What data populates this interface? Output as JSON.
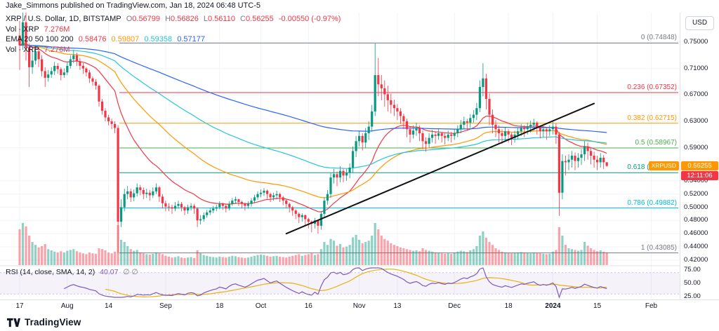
{
  "header": {
    "publish_text": "Jake_Simmons published on TradingView.com, Jan 18, 2024 06:48 UTC-5"
  },
  "legend": {
    "title": "XRP / U.S. Dollar, 1D, BITSTAMP",
    "ohlc": {
      "o_label": "O",
      "o": "0.56799",
      "h_label": "H",
      "h": "0.56826",
      "l_label": "L",
      "l": "0.56110",
      "c_label": "C",
      "c": "0.56255",
      "change": "-0.00550 (-0.97%)"
    },
    "vol": {
      "label": "Vol · XRP",
      "value": "7.276M"
    },
    "ema": {
      "label": "EMA 20 50 100 200",
      "values": [
        "0.58476",
        "0.59807",
        "0.59358",
        "0.57177"
      ]
    },
    "vol2": {
      "label": "Vol · XRP",
      "value": "7.276M"
    }
  },
  "rsi_legend": {
    "label": "RSI (14, close, SMA, 14, 2)",
    "value": "40.07",
    "marks": "∅ ∅"
  },
  "axis": {
    "currency": "USD",
    "price_ticks": [
      {
        "label": "0.75000",
        "value": 0.75
      },
      {
        "label": "0.71000",
        "value": 0.71
      },
      {
        "label": "0.67000",
        "value": 0.67
      },
      {
        "label": "0.63000",
        "value": 0.63
      },
      {
        "label": "0.59000",
        "value": 0.59
      },
      {
        "label": "0.54000",
        "value": 0.54
      },
      {
        "label": "0.52000",
        "value": 0.52
      },
      {
        "label": "0.50000",
        "value": 0.5
      },
      {
        "label": "0.48000",
        "value": 0.48
      },
      {
        "label": "0.46000",
        "value": 0.46
      },
      {
        "label": "0.44000",
        "value": 0.44
      },
      {
        "label": "0.42000",
        "value": 0.42
      }
    ],
    "rsi_ticks": [
      {
        "label": "75.00",
        "value": 75
      },
      {
        "label": "50.00",
        "value": 50
      },
      {
        "label": "25.00",
        "value": 25
      }
    ],
    "price_badge": {
      "symbol": "XRPUSD",
      "label": "0.56255",
      "value": 0.56255,
      "countdown": "12:11:06"
    }
  },
  "time_axis": [
    {
      "label": "17",
      "bar": 0
    },
    {
      "label": "Aug",
      "bar": 15
    },
    {
      "label": "14",
      "bar": 28
    },
    {
      "label": "Sep",
      "bar": 46
    },
    {
      "label": "18",
      "bar": 63
    },
    {
      "label": "Oct",
      "bar": 76
    },
    {
      "label": "16",
      "bar": 91
    },
    {
      "label": "Nov",
      "bar": 107
    },
    {
      "label": "13",
      "bar": 119
    },
    {
      "label": "Dec",
      "bar": 137
    },
    {
      "label": "18",
      "bar": 154
    },
    {
      "label": "2024",
      "bar": 168,
      "strong": true
    },
    {
      "label": "15",
      "bar": 182
    },
    {
      "label": "Feb",
      "bar": 199
    }
  ],
  "footer": {
    "brand": "TradingView"
  },
  "colors": {
    "text_primary": "#131722",
    "text_muted": "#787b86",
    "up": "#089981",
    "down": "#f23645",
    "grid": "#f0f3fa",
    "border": "#e0e3eb",
    "vol_up": "rgba(8,153,129,0.45)",
    "vol_down": "rgba(242,54,69,0.45)",
    "ema": [
      "#f23645",
      "#ff9800",
      "#26c6da",
      "#2962ff"
    ],
    "trendline": "#111111",
    "rsi": "#7e57c2",
    "rsi_ma": "#e8b20c",
    "rsi_band": "rgba(126,87,194,0.08)",
    "rsi_level": "#b39ddb",
    "badge_bg": "#ff9800",
    "countdown_bg": "#f23645"
  },
  "chart_data": {
    "type": "candlestick",
    "title": "XRP / U.S. Dollar, 1D, BITSTAMP",
    "symbol": "XRPUSD",
    "interval": "1D",
    "exchange": "BITSTAMP",
    "start_date": "2023-07-17",
    "bars": 186,
    "ylim": [
      0.414,
      0.78
    ],
    "open_rule": "open equals previous close",
    "first_open": 0.76,
    "hlc": [
      [
        0.782,
        0.708,
        0.745
      ],
      [
        0.82,
        0.738,
        0.78
      ],
      [
        0.814,
        0.722,
        0.742
      ],
      [
        0.748,
        0.682,
        0.712
      ],
      [
        0.738,
        0.702,
        0.722
      ],
      [
        0.745,
        0.716,
        0.736
      ],
      [
        0.742,
        0.712,
        0.724
      ],
      [
        0.73,
        0.698,
        0.706
      ],
      [
        0.712,
        0.682,
        0.696
      ],
      [
        0.708,
        0.69,
        0.701
      ],
      [
        0.712,
        0.696,
        0.706
      ],
      [
        0.72,
        0.7,
        0.714
      ],
      [
        0.718,
        0.702,
        0.709
      ],
      [
        0.712,
        0.692,
        0.7
      ],
      [
        0.71,
        0.696,
        0.704
      ],
      [
        0.72,
        0.7,
        0.714
      ],
      [
        0.73,
        0.71,
        0.724
      ],
      [
        0.738,
        0.718,
        0.73
      ],
      [
        0.734,
        0.714,
        0.721
      ],
      [
        0.726,
        0.708,
        0.714
      ],
      [
        0.718,
        0.702,
        0.71
      ],
      [
        0.712,
        0.698,
        0.704
      ],
      [
        0.708,
        0.688,
        0.695
      ],
      [
        0.698,
        0.684,
        0.69
      ],
      [
        0.694,
        0.678,
        0.684
      ],
      [
        0.686,
        0.652,
        0.66
      ],
      [
        0.664,
        0.64,
        0.646
      ],
      [
        0.65,
        0.63,
        0.636
      ],
      [
        0.64,
        0.624,
        0.63
      ],
      [
        0.634,
        0.618,
        0.626
      ],
      [
        0.63,
        0.612,
        0.62
      ],
      [
        0.624,
        0.43,
        0.478
      ],
      [
        0.512,
        0.47,
        0.5
      ],
      [
        0.528,
        0.494,
        0.52
      ],
      [
        0.532,
        0.512,
        0.524
      ],
      [
        0.528,
        0.508,
        0.515
      ],
      [
        0.527,
        0.509,
        0.521
      ],
      [
        0.536,
        0.516,
        0.53
      ],
      [
        0.534,
        0.518,
        0.526
      ],
      [
        0.53,
        0.512,
        0.52
      ],
      [
        0.528,
        0.514,
        0.522
      ],
      [
        0.526,
        0.51,
        0.518
      ],
      [
        0.53,
        0.514,
        0.524
      ],
      [
        0.536,
        0.52,
        0.53
      ],
      [
        0.532,
        0.508,
        0.516
      ],
      [
        0.52,
        0.498,
        0.506
      ],
      [
        0.51,
        0.494,
        0.501
      ],
      [
        0.506,
        0.494,
        0.5
      ],
      [
        0.504,
        0.49,
        0.498
      ],
      [
        0.508,
        0.494,
        0.502
      ],
      [
        0.51,
        0.498,
        0.505
      ],
      [
        0.508,
        0.494,
        0.5
      ],
      [
        0.502,
        0.488,
        0.495
      ],
      [
        0.504,
        0.49,
        0.5
      ],
      [
        0.506,
        0.495,
        0.502
      ],
      [
        0.505,
        0.49,
        0.498
      ],
      [
        0.5,
        0.47,
        0.48
      ],
      [
        0.488,
        0.474,
        0.482
      ],
      [
        0.492,
        0.478,
        0.488
      ],
      [
        0.496,
        0.484,
        0.492
      ],
      [
        0.499,
        0.488,
        0.495
      ],
      [
        0.502,
        0.491,
        0.498
      ],
      [
        0.504,
        0.494,
        0.5
      ],
      [
        0.509,
        0.497,
        0.505
      ],
      [
        0.507,
        0.496,
        0.502
      ],
      [
        0.505,
        0.492,
        0.498
      ],
      [
        0.509,
        0.495,
        0.505
      ],
      [
        0.514,
        0.502,
        0.51
      ],
      [
        0.516,
        0.505,
        0.512
      ],
      [
        0.513,
        0.502,
        0.508
      ],
      [
        0.51,
        0.498,
        0.505
      ],
      [
        0.507,
        0.495,
        0.502
      ],
      [
        0.509,
        0.498,
        0.505
      ],
      [
        0.514,
        0.501,
        0.51
      ],
      [
        0.519,
        0.506,
        0.515
      ],
      [
        0.524,
        0.511,
        0.52
      ],
      [
        0.527,
        0.515,
        0.522
      ],
      [
        0.529,
        0.517,
        0.525
      ],
      [
        0.527,
        0.513,
        0.52
      ],
      [
        0.522,
        0.508,
        0.515
      ],
      [
        0.522,
        0.51,
        0.518
      ],
      [
        0.525,
        0.512,
        0.52
      ],
      [
        0.522,
        0.508,
        0.515
      ],
      [
        0.517,
        0.503,
        0.51
      ],
      [
        0.512,
        0.498,
        0.505
      ],
      [
        0.507,
        0.492,
        0.5
      ],
      [
        0.502,
        0.487,
        0.495
      ],
      [
        0.497,
        0.482,
        0.49
      ],
      [
        0.492,
        0.476,
        0.485
      ],
      [
        0.491,
        0.478,
        0.488
      ],
      [
        0.489,
        0.473,
        0.482
      ],
      [
        0.484,
        0.468,
        0.478
      ],
      [
        0.48,
        0.462,
        0.475
      ],
      [
        0.484,
        0.468,
        0.48
      ],
      [
        0.478,
        0.46,
        0.472
      ],
      [
        0.494,
        0.466,
        0.49
      ],
      [
        0.515,
        0.484,
        0.51
      ],
      [
        0.526,
        0.504,
        0.52
      ],
      [
        0.552,
        0.514,
        0.545
      ],
      [
        0.558,
        0.536,
        0.55
      ],
      [
        0.554,
        0.532,
        0.545
      ],
      [
        0.562,
        0.538,
        0.555
      ],
      [
        0.558,
        0.538,
        0.548
      ],
      [
        0.558,
        0.54,
        0.552
      ],
      [
        0.566,
        0.544,
        0.56
      ],
      [
        0.592,
        0.552,
        0.585
      ],
      [
        0.608,
        0.576,
        0.6
      ],
      [
        0.616,
        0.592,
        0.608
      ],
      [
        0.612,
        0.586,
        0.598
      ],
      [
        0.62,
        0.59,
        0.612
      ],
      [
        0.63,
        0.602,
        0.622
      ],
      [
        0.655,
        0.614,
        0.645
      ],
      [
        0.748,
        0.638,
        0.7
      ],
      [
        0.726,
        0.668,
        0.686
      ],
      [
        0.7,
        0.662,
        0.68
      ],
      [
        0.692,
        0.652,
        0.671
      ],
      [
        0.684,
        0.645,
        0.662
      ],
      [
        0.672,
        0.642,
        0.655
      ],
      [
        0.663,
        0.638,
        0.65
      ],
      [
        0.656,
        0.632,
        0.645
      ],
      [
        0.65,
        0.626,
        0.638
      ],
      [
        0.642,
        0.618,
        0.63
      ],
      [
        0.634,
        0.606,
        0.618
      ],
      [
        0.622,
        0.598,
        0.61
      ],
      [
        0.624,
        0.604,
        0.616
      ],
      [
        0.628,
        0.608,
        0.62
      ],
      [
        0.624,
        0.6,
        0.612
      ],
      [
        0.616,
        0.588,
        0.6
      ],
      [
        0.606,
        0.584,
        0.596
      ],
      [
        0.612,
        0.59,
        0.605
      ],
      [
        0.617,
        0.598,
        0.61
      ],
      [
        0.615,
        0.596,
        0.608
      ],
      [
        0.618,
        0.602,
        0.612
      ],
      [
        0.614,
        0.598,
        0.608
      ],
      [
        0.612,
        0.595,
        0.605
      ],
      [
        0.616,
        0.6,
        0.61
      ],
      [
        0.614,
        0.598,
        0.608
      ],
      [
        0.618,
        0.602,
        0.612
      ],
      [
        0.624,
        0.606,
        0.618
      ],
      [
        0.632,
        0.612,
        0.625
      ],
      [
        0.637,
        0.618,
        0.63
      ],
      [
        0.634,
        0.616,
        0.628
      ],
      [
        0.641,
        0.62,
        0.635
      ],
      [
        0.647,
        0.628,
        0.64
      ],
      [
        0.658,
        0.632,
        0.65
      ],
      [
        0.692,
        0.644,
        0.682
      ],
      [
        0.718,
        0.668,
        0.695
      ],
      [
        0.702,
        0.648,
        0.664
      ],
      [
        0.672,
        0.624,
        0.64
      ],
      [
        0.648,
        0.612,
        0.625
      ],
      [
        0.632,
        0.606,
        0.618
      ],
      [
        0.624,
        0.598,
        0.612
      ],
      [
        0.618,
        0.596,
        0.608
      ],
      [
        0.621,
        0.601,
        0.615
      ],
      [
        0.618,
        0.598,
        0.61
      ],
      [
        0.613,
        0.594,
        0.605
      ],
      [
        0.616,
        0.598,
        0.61
      ],
      [
        0.621,
        0.603,
        0.615
      ],
      [
        0.626,
        0.608,
        0.62
      ],
      [
        0.624,
        0.606,
        0.618
      ],
      [
        0.628,
        0.61,
        0.622
      ],
      [
        0.631,
        0.613,
        0.625
      ],
      [
        0.634,
        0.616,
        0.628
      ],
      [
        0.63,
        0.61,
        0.62
      ],
      [
        0.624,
        0.604,
        0.615
      ],
      [
        0.623,
        0.606,
        0.618
      ],
      [
        0.621,
        0.602,
        0.615
      ],
      [
        0.624,
        0.608,
        0.618
      ],
      [
        0.63,
        0.61,
        0.622
      ],
      [
        0.627,
        0.596,
        0.61
      ],
      [
        0.614,
        0.487,
        0.522
      ],
      [
        0.58,
        0.512,
        0.57
      ],
      [
        0.578,
        0.548,
        0.568
      ],
      [
        0.58,
        0.556,
        0.572
      ],
      [
        0.585,
        0.56,
        0.578
      ],
      [
        0.583,
        0.556,
        0.57
      ],
      [
        0.582,
        0.56,
        0.575
      ],
      [
        0.588,
        0.564,
        0.58
      ],
      [
        0.6,
        0.57,
        0.592
      ],
      [
        0.598,
        0.572,
        0.585
      ],
      [
        0.59,
        0.565,
        0.578
      ],
      [
        0.584,
        0.56,
        0.572
      ],
      [
        0.578,
        0.556,
        0.568
      ],
      [
        0.582,
        0.56,
        0.575
      ],
      [
        0.579,
        0.558,
        0.568
      ],
      [
        0.56826,
        0.5611,
        0.56255
      ]
    ],
    "volume_rel": [
      85,
      100,
      92,
      70,
      55,
      48,
      42,
      45,
      50,
      38,
      35,
      32,
      30,
      33,
      30,
      34,
      36,
      38,
      33,
      30,
      28,
      26,
      30,
      28,
      27,
      40,
      38,
      35,
      30,
      28,
      32,
      95,
      60,
      55,
      45,
      38,
      34,
      36,
      30,
      28,
      26,
      25,
      27,
      30,
      28,
      26,
      22,
      20,
      18,
      19,
      21,
      18,
      17,
      18,
      19,
      17,
      35,
      28,
      24,
      22,
      20,
      19,
      18,
      20,
      19,
      18,
      20,
      22,
      21,
      19,
      18,
      17,
      18,
      20,
      22,
      24,
      25,
      24,
      22,
      20,
      21,
      22,
      20,
      19,
      18,
      20,
      22,
      24,
      26,
      22,
      24,
      26,
      28,
      24,
      26,
      38,
      55,
      48,
      62,
      58,
      46,
      50,
      42,
      44,
      48,
      66,
      72,
      60,
      52,
      55,
      58,
      70,
      100,
      85,
      70,
      62,
      58,
      52,
      48,
      45,
      42,
      40,
      38,
      36,
      34,
      35,
      33,
      40,
      36,
      34,
      32,
      30,
      29,
      28,
      27,
      28,
      27,
      30,
      32,
      34,
      33,
      31,
      35,
      38,
      45,
      70,
      80,
      65,
      55,
      48,
      40,
      36,
      32,
      30,
      29,
      28,
      29,
      30,
      31,
      30,
      29,
      28,
      30,
      29,
      28,
      27,
      26,
      27,
      32,
      36,
      90,
      70,
      48,
      40,
      38,
      36,
      34,
      36,
      55,
      46,
      40,
      36,
      33,
      35,
      32,
      30
    ],
    "ema_periods": [
      20,
      50,
      100,
      200
    ],
    "rsi": {
      "period": 14,
      "ma_period": 14,
      "last_value": 40.07,
      "band": [
        30,
        70
      ]
    },
    "trendline": {
      "bar1": 84,
      "price1": 0.46,
      "bar2": 181,
      "price2": 0.657
    },
    "fib": [
      {
        "level": "0",
        "price": 0.74848,
        "label": "0 (0.74848)",
        "color": "#787b86"
      },
      {
        "level": "0.236",
        "price": 0.67352,
        "label": "0.236 (0.67352)",
        "color": "#f23645"
      },
      {
        "level": "0.382",
        "price": 0.62715,
        "label": "0.382 (0.62715)",
        "color": "#ff9800"
      },
      {
        "level": "0.5",
        "price": 0.58967,
        "label": "0.5 (0.58967)",
        "color": "#4caf50"
      },
      {
        "level": "0.618",
        "price": 0.55219,
        "label": "0.618 (0.55219)",
        "color": "#089981"
      },
      {
        "level": "0.786",
        "price": 0.49882,
        "label": "0.786 (0.49882)",
        "color": "#00bcd4"
      },
      {
        "level": "1",
        "price": 0.43085,
        "label": "1 (0.43085)",
        "color": "#787b86"
      }
    ]
  }
}
